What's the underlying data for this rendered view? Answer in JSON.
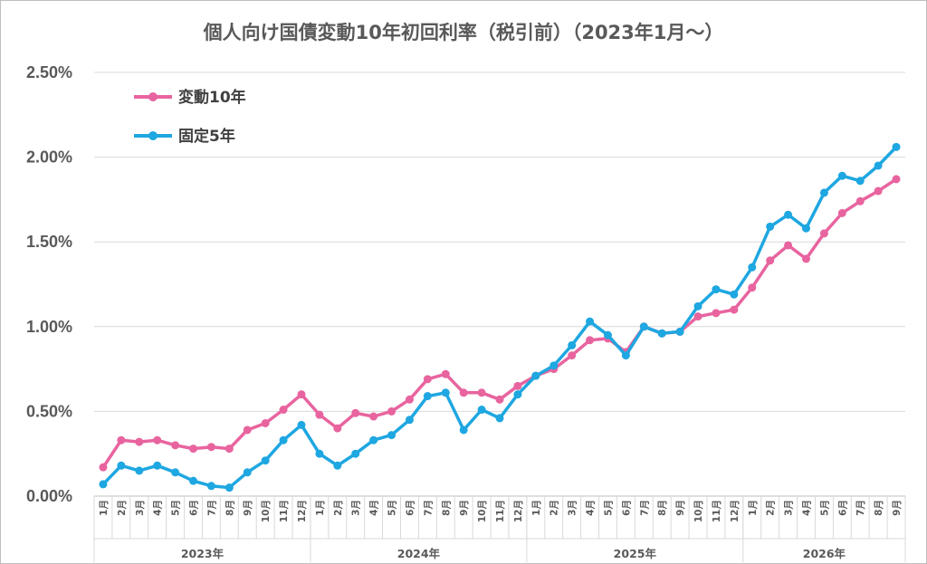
{
  "chart_data": {
    "type": "line",
    "title": "個人向け国債変動10年初回利率（税引前）（2023年1月～）",
    "xlabel": "",
    "ylabel": "",
    "ylim": [
      0,
      2.5
    ],
    "y_ticks": [
      "0.00%",
      "0.50%",
      "1.00%",
      "1.50%",
      "2.00%",
      "2.50%"
    ],
    "grid": true,
    "legend_position": "top-left",
    "years": [
      {
        "label": "2023年",
        "count": 12
      },
      {
        "label": "2024年",
        "count": 12
      },
      {
        "label": "2025年",
        "count": 12
      },
      {
        "label": "2026年",
        "count": 9
      }
    ],
    "x": [
      "1月",
      "2月",
      "3月",
      "4月",
      "5月",
      "6月",
      "7月",
      "8月",
      "9月",
      "10月",
      "11月",
      "12月",
      "1月",
      "2月",
      "3月",
      "4月",
      "5月",
      "6月",
      "7月",
      "8月",
      "9月",
      "10月",
      "11月",
      "12月",
      "1月",
      "2月",
      "3月",
      "4月",
      "5月",
      "6月",
      "7月",
      "8月",
      "9月",
      "10月",
      "11月",
      "12月",
      "1月",
      "2月",
      "3月",
      "4月",
      "5月",
      "6月",
      "7月",
      "8月",
      "9月"
    ],
    "series": [
      {
        "name": "変動10年",
        "color": "#e8649f",
        "values": [
          0.17,
          0.33,
          0.32,
          0.33,
          0.3,
          0.28,
          0.29,
          0.28,
          0.39,
          0.43,
          0.51,
          0.6,
          0.48,
          0.4,
          0.49,
          0.47,
          0.5,
          0.57,
          0.69,
          0.72,
          0.61,
          0.61,
          0.57,
          0.65,
          0.71,
          0.75,
          0.83,
          0.92,
          0.93,
          0.85,
          1.0,
          0.96,
          0.97,
          1.06,
          1.08,
          1.1,
          1.23,
          1.39,
          1.48,
          1.4,
          1.55,
          1.67,
          1.74,
          1.8,
          1.87
        ]
      },
      {
        "name": "固定5年",
        "color": "#1ea7e1",
        "values": [
          0.07,
          0.18,
          0.15,
          0.18,
          0.14,
          0.09,
          0.06,
          0.05,
          0.14,
          0.21,
          0.33,
          0.42,
          0.25,
          0.18,
          0.25,
          0.33,
          0.36,
          0.45,
          0.59,
          0.61,
          0.39,
          0.51,
          0.46,
          0.6,
          0.71,
          0.77,
          0.89,
          1.03,
          0.95,
          0.83,
          1.0,
          0.96,
          0.97,
          1.12,
          1.22,
          1.19,
          1.35,
          1.59,
          1.66,
          1.58,
          1.79,
          1.89,
          1.86,
          1.95,
          2.06
        ]
      }
    ]
  }
}
